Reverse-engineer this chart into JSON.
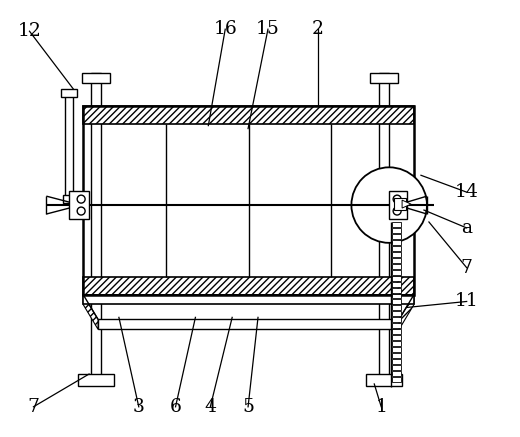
{
  "bg_color": "#ffffff",
  "figsize": [
    5.2,
    4.37
  ],
  "dpi": 100,
  "annotations": [
    [
      "12",
      28,
      30,
      72,
      88
    ],
    [
      "16",
      225,
      28,
      208,
      125
    ],
    [
      "15",
      268,
      28,
      248,
      128
    ],
    [
      "2",
      318,
      28,
      318,
      105
    ],
    [
      "14",
      468,
      192,
      422,
      175
    ],
    [
      "a",
      468,
      228,
      425,
      210
    ],
    [
      "7",
      468,
      268,
      430,
      222
    ],
    [
      "11",
      468,
      302,
      408,
      308
    ],
    [
      "7",
      32,
      408,
      88,
      375
    ],
    [
      "3",
      138,
      408,
      118,
      318
    ],
    [
      "6",
      175,
      408,
      195,
      318
    ],
    [
      "4",
      210,
      408,
      232,
      318
    ],
    [
      "5",
      248,
      408,
      258,
      318
    ],
    [
      "1",
      382,
      408,
      375,
      385
    ]
  ]
}
